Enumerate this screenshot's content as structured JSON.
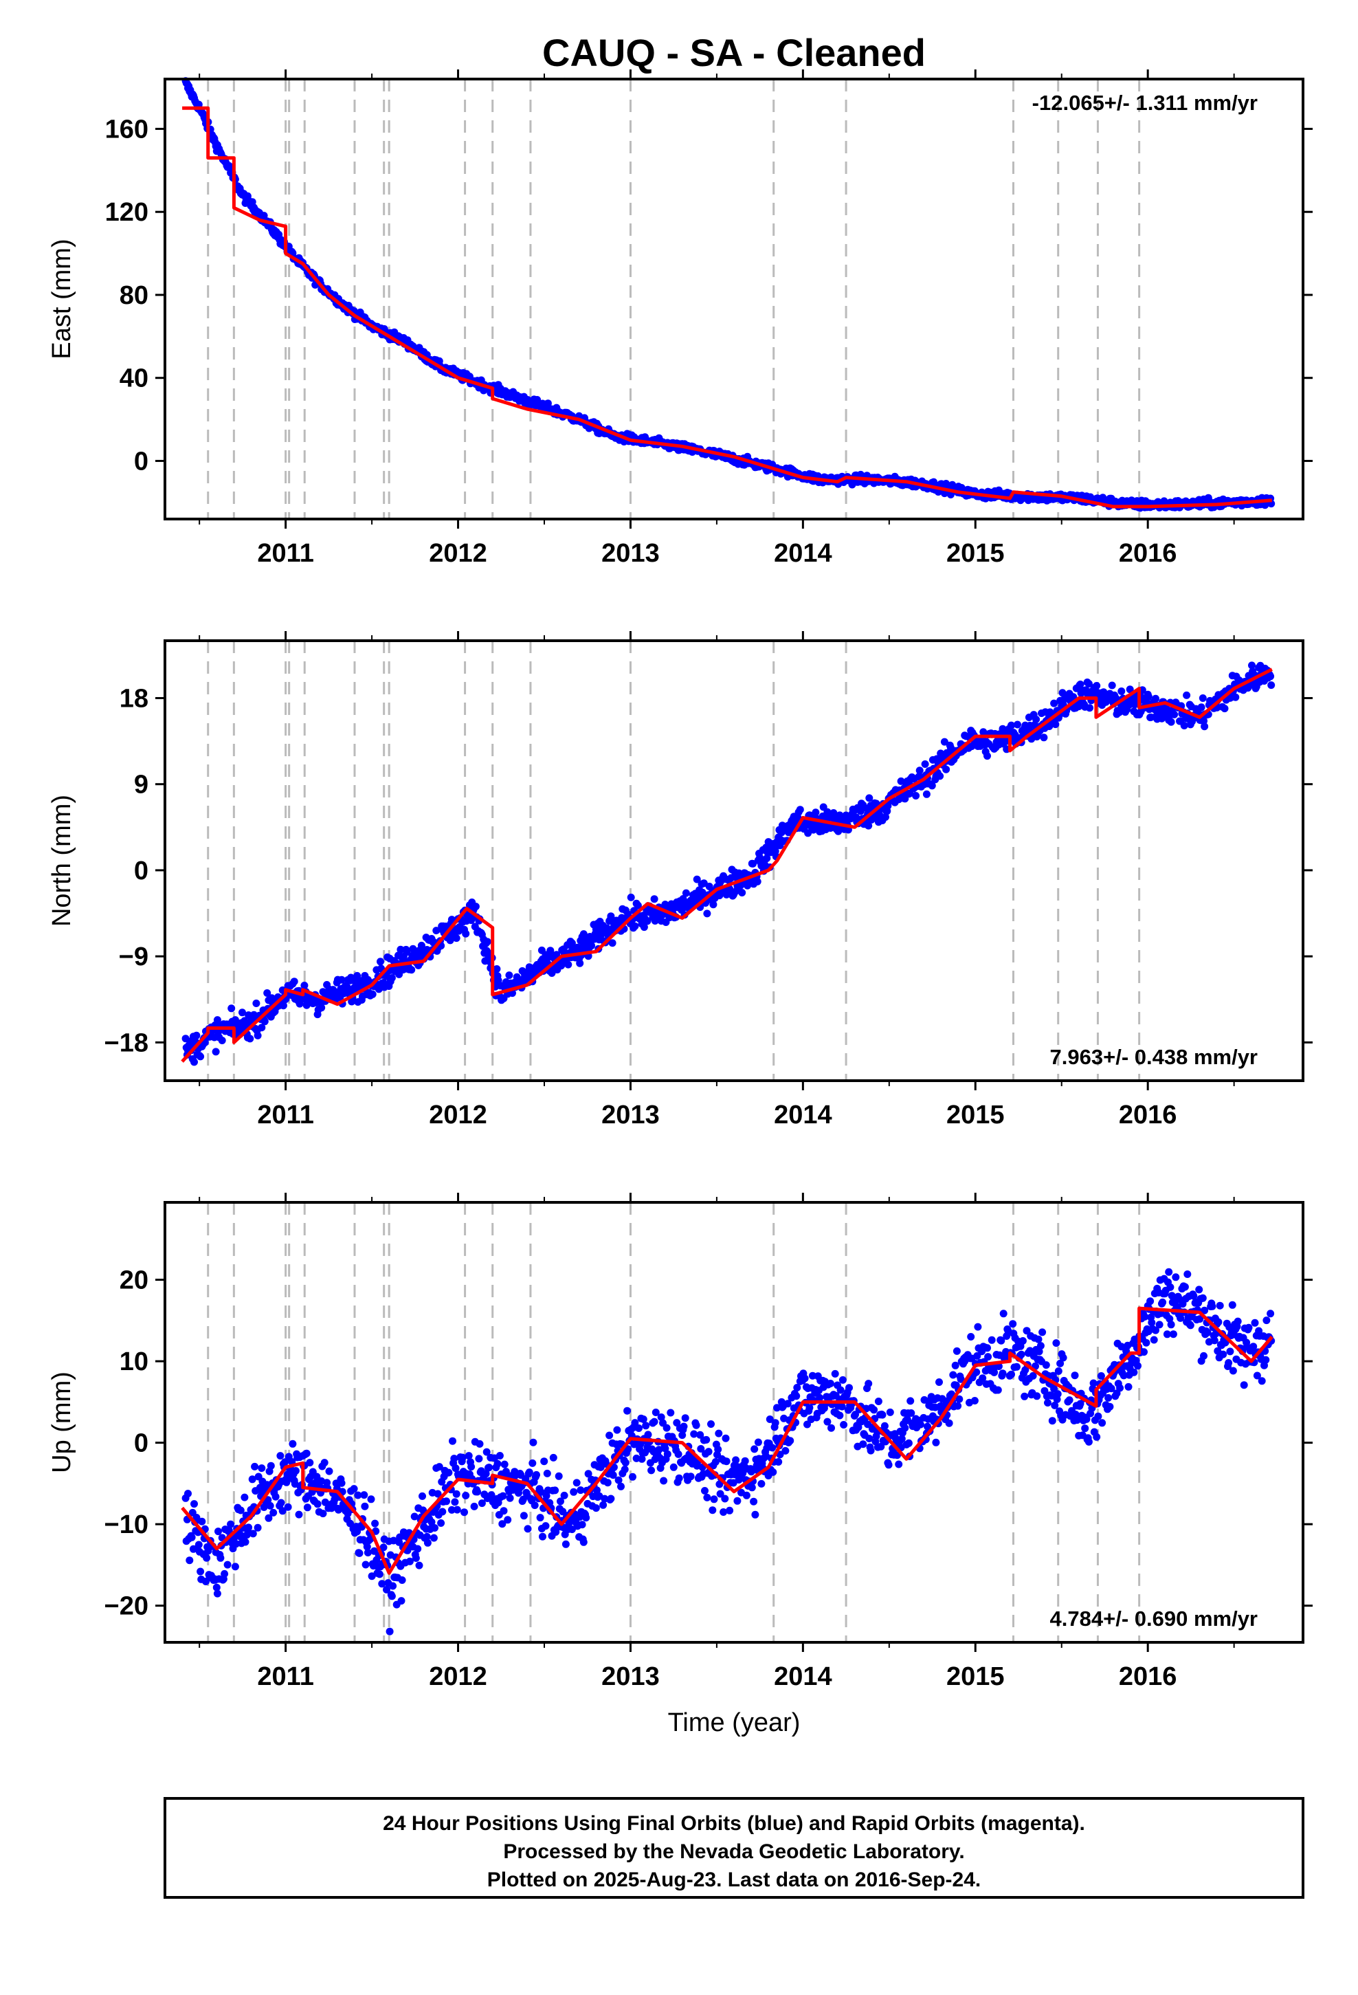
{
  "title": "CAUQ  - SA - Cleaned",
  "xlabel": "Time (year)",
  "colors": {
    "data": "#0000ff",
    "model": "#ff0000",
    "breaks": "#bbbbbb",
    "frame": "#000000"
  },
  "chart_data": [
    {
      "type": "scatter",
      "name": "east",
      "ylabel": "East (mm)",
      "rate_text": "-12.065+/- 1.311 mm/yr",
      "xlim": [
        2010.3,
        2016.9
      ],
      "ylim": [
        -28,
        184
      ],
      "y_ticks": [
        0,
        40,
        80,
        120,
        160
      ],
      "x_ticks": [
        2011,
        2012,
        2013,
        2014,
        2015,
        2016
      ],
      "model_knots": [
        [
          2010.4,
          170
        ],
        [
          2010.55,
          170
        ],
        [
          2010.55,
          146
        ],
        [
          2010.7,
          146
        ],
        [
          2010.7,
          122
        ],
        [
          2010.85,
          116
        ],
        [
          2011.0,
          113
        ],
        [
          2011.0,
          100
        ],
        [
          2011.1,
          95
        ],
        [
          2011.25,
          80
        ],
        [
          2011.4,
          70
        ],
        [
          2011.6,
          60
        ],
        [
          2011.8,
          50
        ],
        [
          2012.0,
          40
        ],
        [
          2012.2,
          35
        ],
        [
          2012.2,
          30
        ],
        [
          2012.4,
          25
        ],
        [
          2012.7,
          20
        ],
        [
          2013.0,
          10
        ],
        [
          2013.3,
          7
        ],
        [
          2013.6,
          2
        ],
        [
          2013.8,
          -3
        ],
        [
          2014.0,
          -8
        ],
        [
          2014.2,
          -10
        ],
        [
          2014.25,
          -8
        ],
        [
          2014.6,
          -10
        ],
        [
          2014.9,
          -15
        ],
        [
          2015.2,
          -18
        ],
        [
          2015.22,
          -15
        ],
        [
          2015.5,
          -17
        ],
        [
          2015.8,
          -22
        ],
        [
          2016.0,
          -22
        ],
        [
          2016.4,
          -21
        ],
        [
          2016.72,
          -19
        ]
      ],
      "scatter_points": [
        [
          2010.42,
          182
        ],
        [
          2010.5,
          170
        ],
        [
          2010.6,
          152
        ],
        [
          2010.75,
          128
        ],
        [
          2010.9,
          114
        ],
        [
          2011.05,
          98
        ],
        [
          2011.2,
          85
        ],
        [
          2011.35,
          74
        ],
        [
          2011.5,
          65
        ],
        [
          2011.7,
          57
        ],
        [
          2011.9,
          45
        ],
        [
          2012.1,
          38
        ],
        [
          2012.3,
          32
        ],
        [
          2012.5,
          26
        ],
        [
          2012.7,
          20
        ],
        [
          2012.9,
          12
        ],
        [
          2013.2,
          8
        ],
        [
          2013.5,
          3
        ],
        [
          2013.8,
          -3
        ],
        [
          2014.1,
          -9
        ],
        [
          2014.4,
          -9
        ],
        [
          2014.7,
          -11
        ],
        [
          2015.0,
          -16
        ],
        [
          2015.3,
          -17
        ],
        [
          2015.6,
          -18
        ],
        [
          2015.9,
          -21
        ],
        [
          2016.2,
          -21
        ],
        [
          2016.5,
          -20
        ],
        [
          2016.72,
          -19
        ]
      ],
      "scatter_spread": 2.0
    },
    {
      "type": "scatter",
      "name": "north",
      "ylabel": "North (mm)",
      "rate_text": "7.963+/- 0.438 mm/yr",
      "xlim": [
        2010.3,
        2016.9
      ],
      "ylim": [
        -22,
        24
      ],
      "y_ticks": [
        -18,
        -9,
        0,
        9,
        18
      ],
      "x_ticks": [
        2011,
        2012,
        2013,
        2014,
        2015,
        2016
      ],
      "model_knots": [
        [
          2010.4,
          -20
        ],
        [
          2010.55,
          -17
        ],
        [
          2010.55,
          -16.5
        ],
        [
          2010.7,
          -16.5
        ],
        [
          2010.7,
          -18
        ],
        [
          2011.0,
          -13
        ],
        [
          2011.0,
          -12.5
        ],
        [
          2011.1,
          -13
        ],
        [
          2011.1,
          -12.5
        ],
        [
          2011.3,
          -14
        ],
        [
          2011.5,
          -12
        ],
        [
          2011.6,
          -10
        ],
        [
          2011.8,
          -9.5
        ],
        [
          2012.05,
          -4
        ],
        [
          2012.2,
          -6
        ],
        [
          2012.2,
          -13
        ],
        [
          2012.4,
          -12
        ],
        [
          2012.6,
          -9
        ],
        [
          2012.8,
          -8.5
        ],
        [
          2013.0,
          -5
        ],
        [
          2013.1,
          -3.5
        ],
        [
          2013.3,
          -5
        ],
        [
          2013.5,
          -2
        ],
        [
          2013.8,
          0
        ],
        [
          2013.85,
          1
        ],
        [
          2014.0,
          5.5
        ],
        [
          2014.3,
          4.5
        ],
        [
          2014.5,
          7.5
        ],
        [
          2014.7,
          9.5
        ],
        [
          2015.0,
          14
        ],
        [
          2015.2,
          14
        ],
        [
          2015.2,
          12.5
        ],
        [
          2015.3,
          14
        ],
        [
          2015.6,
          18
        ],
        [
          2015.7,
          18
        ],
        [
          2015.7,
          16
        ],
        [
          2015.95,
          19
        ],
        [
          2015.95,
          17
        ],
        [
          2016.1,
          17.5
        ],
        [
          2016.3,
          16
        ],
        [
          2016.5,
          19
        ],
        [
          2016.72,
          21
        ]
      ],
      "scatter_points": [
        [
          2010.42,
          -19
        ],
        [
          2010.6,
          -17
        ],
        [
          2010.8,
          -16
        ],
        [
          2011.0,
          -13
        ],
        [
          2011.2,
          -13.5
        ],
        [
          2011.45,
          -12
        ],
        [
          2011.7,
          -9.5
        ],
        [
          2011.9,
          -7
        ],
        [
          2012.1,
          -4.5
        ],
        [
          2012.25,
          -13
        ],
        [
          2012.5,
          -10
        ],
        [
          2012.7,
          -8.5
        ],
        [
          2012.95,
          -5
        ],
        [
          2013.2,
          -4.5
        ],
        [
          2013.45,
          -2.5
        ],
        [
          2013.7,
          -0.5
        ],
        [
          2013.95,
          5
        ],
        [
          2014.2,
          5
        ],
        [
          2014.45,
          6.5
        ],
        [
          2014.7,
          9.5
        ],
        [
          2014.95,
          13.5
        ],
        [
          2015.15,
          13.5
        ],
        [
          2015.4,
          15.5
        ],
        [
          2015.6,
          18.5
        ],
        [
          2015.85,
          17.5
        ],
        [
          2016.1,
          17
        ],
        [
          2016.3,
          16
        ],
        [
          2016.5,
          19
        ],
        [
          2016.72,
          21
        ]
      ],
      "scatter_spread": 1.4
    },
    {
      "type": "scatter",
      "name": "up",
      "ylabel": "Up (mm)",
      "rate_text": "4.784+/- 0.690 mm/yr",
      "xlim": [
        2010.3,
        2016.9
      ],
      "ylim": [
        -24.5,
        29.5
      ],
      "y_ticks": [
        -20,
        -10,
        0,
        10,
        20
      ],
      "x_ticks": [
        2011,
        2012,
        2013,
        2014,
        2015,
        2016
      ],
      "model_knots": [
        [
          2010.4,
          -8
        ],
        [
          2010.6,
          -13
        ],
        [
          2010.8,
          -9
        ],
        [
          2011.0,
          -3
        ],
        [
          2011.1,
          -2.5
        ],
        [
          2011.1,
          -5.5
        ],
        [
          2011.3,
          -6
        ],
        [
          2011.5,
          -11
        ],
        [
          2011.6,
          -16
        ],
        [
          2011.8,
          -9
        ],
        [
          2012.0,
          -4.5
        ],
        [
          2012.2,
          -5
        ],
        [
          2012.2,
          -4
        ],
        [
          2012.4,
          -5
        ],
        [
          2012.6,
          -10
        ],
        [
          2012.8,
          -5
        ],
        [
          2013.0,
          0.5
        ],
        [
          2013.3,
          0
        ],
        [
          2013.6,
          -6
        ],
        [
          2013.8,
          -3
        ],
        [
          2014.0,
          5
        ],
        [
          2014.3,
          5
        ],
        [
          2014.6,
          -2
        ],
        [
          2014.8,
          3
        ],
        [
          2015.0,
          9.5
        ],
        [
          2015.2,
          10
        ],
        [
          2015.2,
          11
        ],
        [
          2015.4,
          8
        ],
        [
          2015.7,
          4.5
        ],
        [
          2015.7,
          6.5
        ],
        [
          2015.9,
          11
        ],
        [
          2015.95,
          11
        ],
        [
          2015.95,
          16.5
        ],
        [
          2016.3,
          16
        ],
        [
          2016.6,
          10
        ],
        [
          2016.72,
          13
        ]
      ],
      "scatter_points": [
        [
          2010.42,
          -10
        ],
        [
          2010.6,
          -15
        ],
        [
          2010.8,
          -8
        ],
        [
          2011.0,
          -4
        ],
        [
          2011.2,
          -5
        ],
        [
          2011.45,
          -10
        ],
        [
          2011.6,
          -17
        ],
        [
          2011.8,
          -10
        ],
        [
          2012.0,
          -4
        ],
        [
          2012.2,
          -5
        ],
        [
          2012.45,
          -6
        ],
        [
          2012.65,
          -10
        ],
        [
          2012.85,
          -4
        ],
        [
          2013.0,
          0
        ],
        [
          2013.3,
          0
        ],
        [
          2013.55,
          -5
        ],
        [
          2013.75,
          -3
        ],
        [
          2013.95,
          5
        ],
        [
          2014.2,
          6
        ],
        [
          2014.5,
          0
        ],
        [
          2014.75,
          3
        ],
        [
          2014.95,
          9
        ],
        [
          2015.2,
          11
        ],
        [
          2015.45,
          8
        ],
        [
          2015.65,
          3
        ],
        [
          2015.9,
          11
        ],
        [
          2016.1,
          18
        ],
        [
          2016.3,
          16
        ],
        [
          2016.55,
          11
        ],
        [
          2016.72,
          13
        ]
      ],
      "scatter_spread": 4.0
    }
  ],
  "breaks": [
    2010.55,
    2010.7,
    2011.0,
    2011.02,
    2011.11,
    2011.4,
    2011.57,
    2011.6,
    2012.04,
    2012.2,
    2012.42,
    2013.0,
    2013.83,
    2014.25,
    2015.22,
    2015.48,
    2015.71,
    2015.95
  ],
  "footer": {
    "line1": "24 Hour Positions Using Final Orbits (blue) and Rapid Orbits (magenta).",
    "line2": "Processed by the Nevada Geodetic Laboratory.",
    "line3": "Plotted on 2025-Aug-23. Last data on 2016-Sep-24."
  }
}
